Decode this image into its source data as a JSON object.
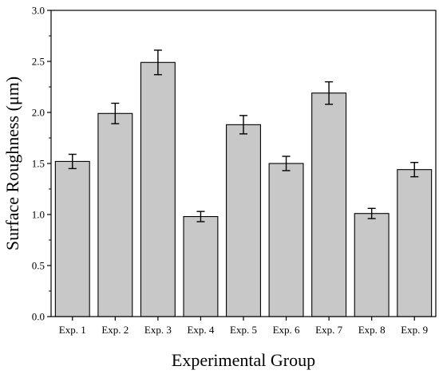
{
  "chart_data": {
    "type": "bar",
    "xlabel": "Experimental Group",
    "ylabel": "Surface Roughness (μm)",
    "categories": [
      "Exp. 1",
      "Exp. 2",
      "Exp. 3",
      "Exp. 4",
      "Exp. 5",
      "Exp. 6",
      "Exp. 7",
      "Exp. 8",
      "Exp. 9"
    ],
    "values": [
      1.52,
      1.99,
      2.49,
      0.98,
      1.88,
      1.5,
      2.19,
      1.01,
      1.44
    ],
    "errors": [
      0.07,
      0.1,
      0.12,
      0.05,
      0.09,
      0.07,
      0.11,
      0.05,
      0.07
    ],
    "ylim": [
      0,
      3.0
    ],
    "yticks": [
      "0.0",
      "0.5",
      "1.0",
      "1.5",
      "2.0",
      "2.5",
      "3.0"
    ],
    "bar_color": "#c8c8c8",
    "grid": false
  }
}
